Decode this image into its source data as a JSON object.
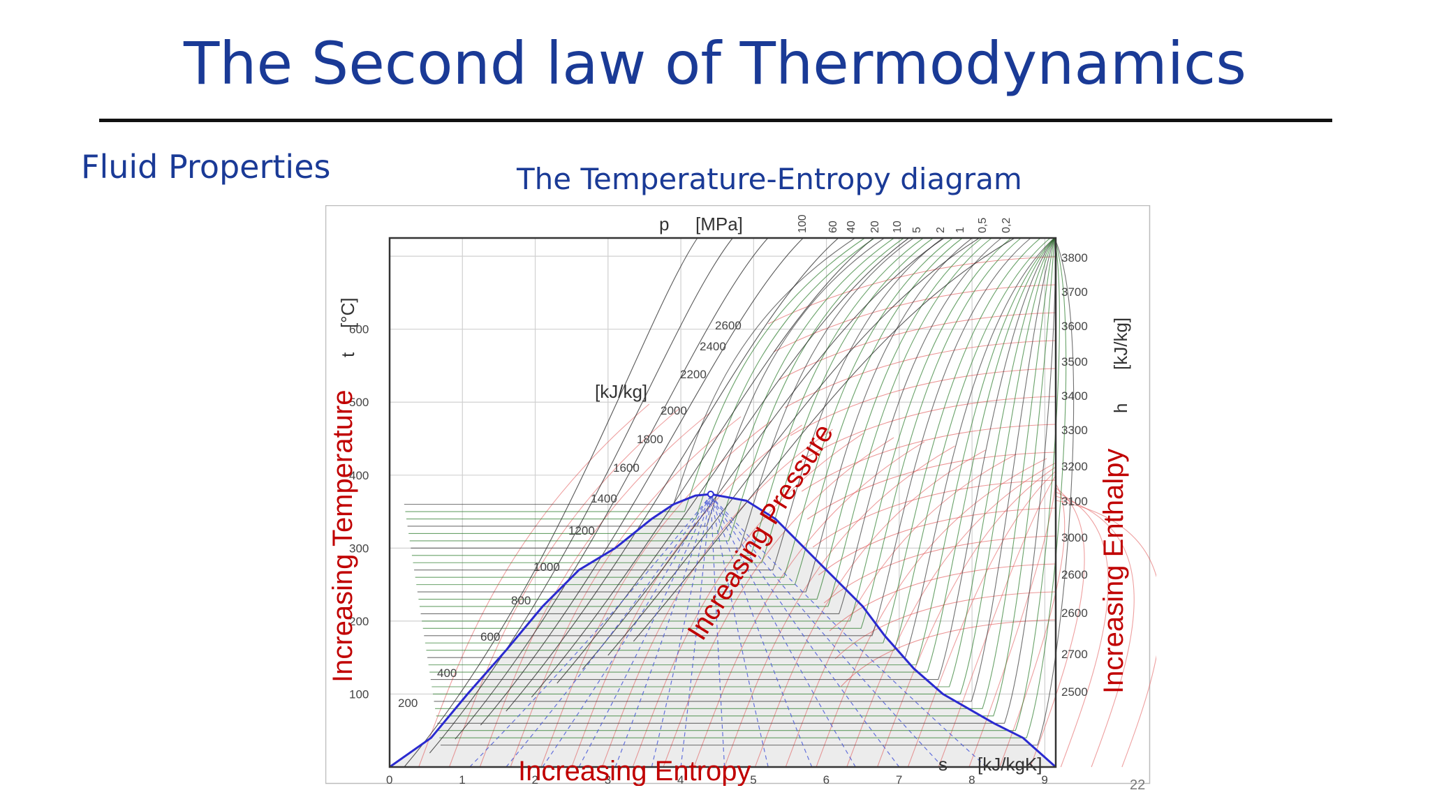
{
  "slide": {
    "title": "The Second law of Thermodynamics",
    "section": "Fluid Properties",
    "caption": "The Temperature-Entropy diagram",
    "page_number": "22"
  },
  "diagram": {
    "pressure_axis_label": "p",
    "pressure_unit": "[MPa]",
    "pressure_ticks": [
      "100",
      "60",
      "40",
      "20",
      "10",
      "5",
      "2",
      "1",
      "0,5",
      "0,2"
    ],
    "temperature_ticks": [
      "100",
      "200",
      "300",
      "400",
      "500",
      "600"
    ],
    "temperature_label": "t",
    "temperature_unit": "[°C]",
    "entropy_ticks": [
      "0",
      "1",
      "2",
      "3",
      "4",
      "5",
      "6",
      "7",
      "8",
      "9"
    ],
    "entropy_label": "s",
    "entropy_unit": "[kJ/kgK]",
    "enthalpy_ticks": [
      "3800",
      "3700",
      "3600",
      "3500",
      "3400",
      "3300",
      "3200",
      "3100",
      "3000",
      "2600",
      "2600",
      "2700",
      "2500"
    ],
    "enthalpy_label": "h",
    "enthalpy_unit": "[kJ/kg]",
    "enthalpy_inner_unit": "[kJ/kg]",
    "enthalpy_line_labels": [
      "2600",
      "2400",
      "2200",
      "2000",
      "1800",
      "1600",
      "1400",
      "1200",
      "1000",
      "800",
      "600",
      "400",
      "200"
    ],
    "annotations": {
      "temperature": "Increasing Temperature",
      "entropy": "Increasing Entropy",
      "pressure": "Increasing Pressure",
      "enthalpy": "Increasing Enthalpy"
    },
    "colors": {
      "saturation_dome": "#2a2ad0",
      "quality_lines": "#4a5ad8",
      "isobars": "#2a7a2a",
      "isenthalps": "#e05050",
      "annotation": "#c00000",
      "dome_fill": "#ececec"
    }
  }
}
